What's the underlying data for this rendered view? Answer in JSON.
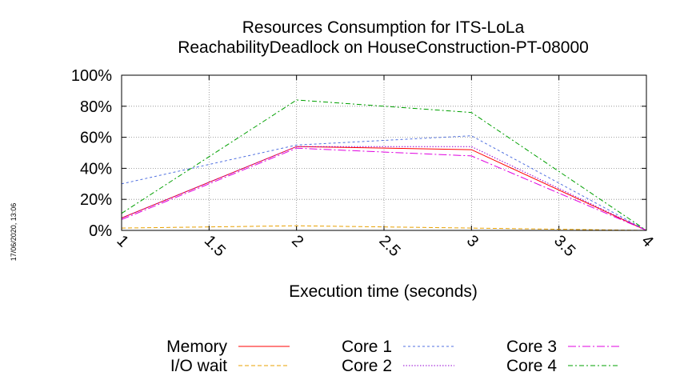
{
  "chart_data": {
    "type": "line",
    "title": "Resources Consumption for ITS-LoLa",
    "subtitle": "ReachabilityDeadlock on HouseConstruction-PT-08000",
    "xlabel": "Execution time (seconds)",
    "ylabel": "",
    "xlim": [
      1,
      4
    ],
    "ylim": [
      0,
      100
    ],
    "x_ticks": [
      "1",
      "1.5",
      "2",
      "2.5",
      "3",
      "3.5",
      "4"
    ],
    "y_ticks": [
      "0%",
      "20%",
      "40%",
      "60%",
      "80%",
      "100%"
    ],
    "grid": true,
    "legend_position": "bottom",
    "x": [
      1,
      2,
      3,
      4
    ],
    "series": [
      {
        "name": "Memory",
        "values": [
          8,
          54,
          52,
          0
        ],
        "color": "#ff0000",
        "dash": ""
      },
      {
        "name": "I/O wait",
        "values": [
          1.5,
          3,
          1.5,
          0
        ],
        "color": "#e8a000",
        "dash": "5,3"
      },
      {
        "name": "Core 1",
        "values": [
          30,
          55,
          61,
          0
        ],
        "color": "#5070e0",
        "dash": "3,3"
      },
      {
        "name": "Core 2",
        "values": [
          8,
          54,
          54,
          0
        ],
        "color": "#9400d3",
        "dash": "1.5,2"
      },
      {
        "name": "Core 3",
        "values": [
          7,
          53,
          48,
          0
        ],
        "color": "#e000e0",
        "dash": "10,3,2,3"
      },
      {
        "name": "Core 4",
        "values": [
          11,
          84,
          76,
          0
        ],
        "color": "#00a000",
        "dash": "6,3,2,3"
      }
    ]
  },
  "timestamp": "17/06/2020, 13:06"
}
